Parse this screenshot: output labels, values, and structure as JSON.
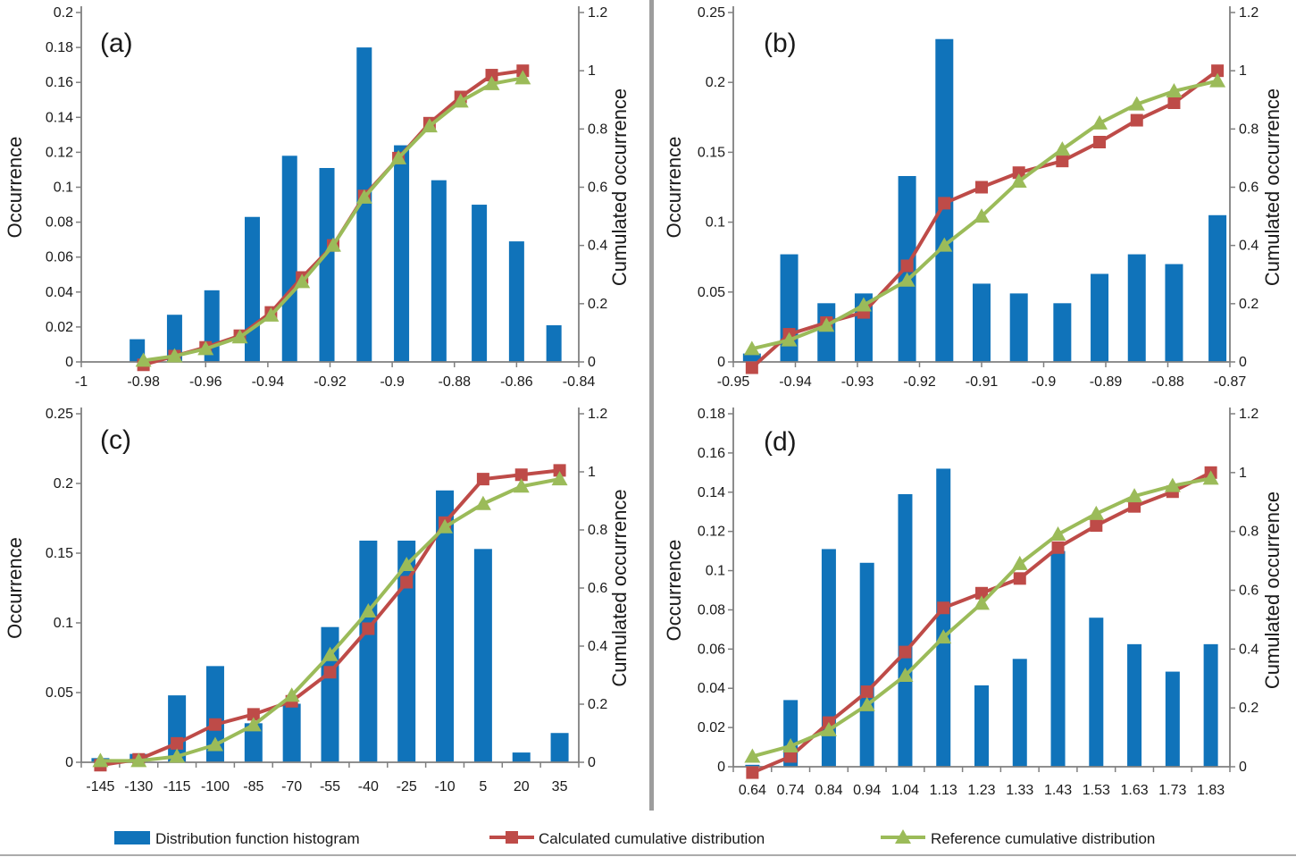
{
  "figure": {
    "background": "#ffffff",
    "axis_color": "#7f7f7f",
    "text_color": "#1a1a1a",
    "separator_color": "#9d9d9d"
  },
  "colors": {
    "bar": "#1073ba",
    "calculated": "#be4b48",
    "reference": "#9bbb59"
  },
  "legend": {
    "items": [
      {
        "key": "bar",
        "swatch": "blue-bar-swatch",
        "label": "Distribution function histogram"
      },
      {
        "key": "calculated",
        "swatch": "red-square-swatch",
        "label": "Calculated cumulative distribution"
      },
      {
        "key": "reference",
        "swatch": "green-triangle-swatch",
        "label": "Reference cumulative distribution"
      }
    ]
  },
  "chart_data": [
    {
      "id": "a",
      "label": "(a)",
      "type": "bar",
      "subtype": "histogram with two cumulative-distribution lines",
      "x_axis": {
        "min": -1,
        "max": -0.84,
        "tick_positions": [
          -1,
          -0.98,
          -0.96,
          -0.94,
          -0.92,
          -0.9,
          -0.88,
          -0.86,
          -0.84
        ],
        "tick_labels": [
          "-1",
          "-0.98",
          "-0.96",
          "-0.94",
          "-0.92",
          "-0.9",
          "-0.88",
          "-0.86",
          "-0.84"
        ],
        "tick_marks": [
          -1,
          -0.98,
          -0.96,
          -0.94,
          -0.92,
          -0.9,
          -0.88,
          -0.86,
          -0.84
        ]
      },
      "left_axis": {
        "title": "Occurrence",
        "min": 0,
        "max": 0.2,
        "tick_values": [
          0,
          0.02,
          0.04,
          0.06,
          0.08,
          0.1,
          0.12,
          0.14,
          0.16,
          0.18,
          0.2
        ],
        "tick_labels": [
          "0",
          "0.02",
          "0.04",
          "0.06",
          "0.08",
          "0.1",
          "0.12",
          "0.14",
          "0.16",
          "0.18",
          "0.2"
        ]
      },
      "right_axis": {
        "title": "Cumulated occurrence",
        "min": 0,
        "max": 1.2,
        "tick_values": [
          0,
          0.2,
          0.4,
          0.6,
          0.8,
          1,
          1.2
        ],
        "tick_labels": [
          "0",
          "0.2",
          "0.4",
          "0.6",
          "0.8",
          "1",
          "1.2"
        ]
      },
      "bars": {
        "x": [
          -0.982,
          -0.97,
          -0.958,
          -0.945,
          -0.933,
          -0.921,
          -0.909,
          -0.897,
          -0.885,
          -0.872,
          -0.86,
          -0.848
        ],
        "heights": [
          0.013,
          0.027,
          0.041,
          0.083,
          0.118,
          0.111,
          0.18,
          0.124,
          0.104,
          0.09,
          0.069,
          0.021
        ]
      },
      "series": [
        {
          "name": "Calculated cumulative distribution",
          "marker": "square",
          "color_key": "calculated",
          "x": [
            -0.98,
            -0.97,
            -0.96,
            -0.949,
            -0.939,
            -0.929,
            -0.919,
            -0.909,
            -0.898,
            -0.888,
            -0.878,
            -0.868,
            -0.858
          ],
          "values": [
            -0.01,
            0.02,
            0.05,
            0.09,
            0.17,
            0.29,
            0.4,
            0.57,
            0.7,
            0.82,
            0.91,
            0.985,
            1.0
          ]
        },
        {
          "name": "Reference cumulative distribution",
          "marker": "triangle",
          "color_key": "reference",
          "x": [
            -0.98,
            -0.97,
            -0.96,
            -0.949,
            -0.939,
            -0.929,
            -0.919,
            -0.909,
            -0.898,
            -0.888,
            -0.878,
            -0.868,
            -0.858
          ],
          "values": [
            0.005,
            0.02,
            0.045,
            0.085,
            0.16,
            0.275,
            0.4,
            0.565,
            0.7,
            0.81,
            0.895,
            0.955,
            0.975
          ]
        }
      ]
    },
    {
      "id": "b",
      "label": "(b)",
      "type": "bar",
      "subtype": "histogram with two cumulative-distribution lines",
      "x_axis": {
        "min": -0.95,
        "max": -0.87,
        "tick_positions": [
          -0.95,
          -0.94,
          -0.93,
          -0.92,
          -0.91,
          -0.9,
          -0.89,
          -0.88,
          -0.87
        ],
        "tick_labels": [
          "-0.95",
          "-0.94",
          "-0.93",
          "-0.92",
          "-0.91",
          "-0.9",
          "-0.89",
          "-0.88",
          "-0.87"
        ],
        "tick_marks": [
          -0.95,
          -0.94,
          -0.93,
          -0.92,
          -0.91,
          -0.9,
          -0.89,
          -0.88,
          -0.87
        ]
      },
      "left_axis": {
        "title": "Occurrence",
        "min": 0,
        "max": 0.25,
        "tick_values": [
          0,
          0.05,
          0.1,
          0.15,
          0.2,
          0.25
        ],
        "tick_labels": [
          "0",
          "0.05",
          "0.1",
          "0.15",
          "0.2",
          "0.25"
        ]
      },
      "right_axis": {
        "title": "Cumulated occurrence",
        "min": 0,
        "max": 1.2,
        "tick_values": [
          0,
          0.2,
          0.4,
          0.6,
          0.8,
          1,
          1.2
        ],
        "tick_labels": [
          "0",
          "0.2",
          "0.4",
          "0.6",
          "0.8",
          "1",
          "1.2"
        ]
      },
      "bars": {
        "x": [
          -0.947,
          -0.941,
          -0.935,
          -0.929,
          -0.922,
          -0.916,
          -0.91,
          -0.904,
          -0.897,
          -0.891,
          -0.885,
          -0.879,
          -0.872
        ],
        "heights": [
          0.006,
          0.077,
          0.042,
          0.049,
          0.133,
          0.231,
          0.056,
          0.049,
          0.042,
          0.063,
          0.077,
          0.07,
          0.105
        ]
      },
      "series": [
        {
          "name": "Calculated cumulative distribution",
          "marker": "square",
          "color_key": "calculated",
          "x": [
            -0.947,
            -0.941,
            -0.935,
            -0.929,
            -0.922,
            -0.916,
            -0.91,
            -0.904,
            -0.897,
            -0.891,
            -0.885,
            -0.879,
            -0.872
          ],
          "values": [
            -0.02,
            0.095,
            0.135,
            0.17,
            0.33,
            0.545,
            0.6,
            0.65,
            0.69,
            0.755,
            0.83,
            0.89,
            1.0
          ]
        },
        {
          "name": "Reference cumulative distribution",
          "marker": "triangle",
          "color_key": "reference",
          "x": [
            -0.947,
            -0.941,
            -0.935,
            -0.929,
            -0.922,
            -0.916,
            -0.91,
            -0.904,
            -0.897,
            -0.891,
            -0.885,
            -0.879,
            -0.872
          ],
          "values": [
            0.045,
            0.075,
            0.125,
            0.195,
            0.28,
            0.4,
            0.5,
            0.62,
            0.73,
            0.82,
            0.885,
            0.93,
            0.965
          ]
        }
      ]
    },
    {
      "id": "c",
      "label": "(c)",
      "type": "bar",
      "subtype": "histogram with two cumulative-distribution lines",
      "x_axis": {
        "min": -0.5,
        "max": 12.5,
        "tick_positions": [
          0,
          1,
          2,
          3,
          4,
          5,
          6,
          7,
          8,
          9,
          10,
          11,
          12
        ],
        "tick_labels": [
          "-145",
          "-130",
          "-115",
          "-100",
          "-85",
          "-70",
          "-55",
          "-40",
          "-25",
          "-10",
          "5",
          "20",
          "35"
        ],
        "tick_marks": [
          -0.5,
          0.5,
          1.5,
          2.5,
          3.5,
          4.5,
          5.5,
          6.5,
          7.5,
          8.5,
          9.5,
          10.5,
          11.5,
          12.5
        ]
      },
      "left_axis": {
        "title": "Occurrence",
        "min": 0,
        "max": 0.25,
        "tick_values": [
          0,
          0.05,
          0.1,
          0.15,
          0.2,
          0.25
        ],
        "tick_labels": [
          "0",
          "0.05",
          "0.1",
          "0.15",
          "0.2",
          "0.25"
        ]
      },
      "right_axis": {
        "title": "Cumulated occurrence",
        "min": 0,
        "max": 1.2,
        "tick_values": [
          0,
          0.2,
          0.4,
          0.6,
          0.8,
          1,
          1.2
        ],
        "tick_labels": [
          "0",
          "0.2",
          "0.4",
          "0.6",
          "0.8",
          "1",
          "1.2"
        ]
      },
      "bars": {
        "x": [
          0,
          1,
          2,
          3,
          4,
          5,
          6,
          7,
          8,
          9,
          10,
          11,
          12
        ],
        "heights": [
          0.003,
          0.006,
          0.048,
          0.069,
          0.028,
          0.042,
          0.097,
          0.159,
          0.159,
          0.195,
          0.153,
          0.007,
          0.021
        ]
      },
      "series": [
        {
          "name": "Calculated cumulative distribution",
          "marker": "square",
          "color_key": "calculated",
          "x": [
            0,
            1,
            2,
            3,
            4,
            5,
            6,
            7,
            8,
            9,
            10,
            11,
            12
          ],
          "values": [
            -0.01,
            0.01,
            0.065,
            0.13,
            0.165,
            0.21,
            0.31,
            0.46,
            0.62,
            0.825,
            0.975,
            0.99,
            1.005
          ]
        },
        {
          "name": "Reference cumulative distribution",
          "marker": "triangle",
          "color_key": "reference",
          "x": [
            0,
            1,
            2,
            3,
            4,
            5,
            6,
            7,
            8,
            9,
            10,
            11,
            12
          ],
          "values": [
            0.005,
            0.005,
            0.02,
            0.06,
            0.128,
            0.23,
            0.37,
            0.52,
            0.68,
            0.81,
            0.89,
            0.95,
            0.975
          ]
        }
      ]
    },
    {
      "id": "d",
      "label": "(d)",
      "type": "bar",
      "subtype": "histogram with two cumulative-distribution lines",
      "x_axis": {
        "min": -0.5,
        "max": 12.5,
        "tick_positions": [
          0,
          1,
          2,
          3,
          4,
          5,
          6,
          7,
          8,
          9,
          10,
          11,
          12
        ],
        "tick_labels": [
          "0.64",
          "0.74",
          "0.84",
          "0.94",
          "1.04",
          "1.13",
          "1.23",
          "1.33",
          "1.43",
          "1.53",
          "1.63",
          "1.73",
          "1.83"
        ],
        "tick_marks": [
          -0.5,
          0.5,
          1.5,
          2.5,
          3.5,
          4.5,
          5.5,
          6.5,
          7.5,
          8.5,
          9.5,
          10.5,
          11.5,
          12.5
        ]
      },
      "left_axis": {
        "title": "Occurrence",
        "min": 0,
        "max": 0.18,
        "tick_values": [
          0,
          0.02,
          0.04,
          0.06,
          0.08,
          0.1,
          0.12,
          0.14,
          0.16,
          0.18
        ],
        "tick_labels": [
          "0",
          "0.02",
          "0.04",
          "0.06",
          "0.08",
          "0.1",
          "0.12",
          "0.14",
          "0.16",
          "0.18"
        ]
      },
      "right_axis": {
        "title": "Cumulated occurrence",
        "min": 0,
        "max": 1.2,
        "tick_values": [
          0,
          0.2,
          0.4,
          0.6,
          0.8,
          1,
          1.2
        ],
        "tick_labels": [
          "0",
          "0.2",
          "0.4",
          "0.6",
          "0.8",
          "1",
          "1.2"
        ]
      },
      "bars": {
        "x": [
          0,
          1,
          2,
          3,
          4,
          5,
          6,
          7,
          8,
          9,
          10,
          11,
          12
        ],
        "heights": [
          0.001,
          0.034,
          0.111,
          0.104,
          0.139,
          0.152,
          0.0415,
          0.055,
          0.11,
          0.076,
          0.0625,
          0.0485,
          0.0625
        ]
      },
      "series": [
        {
          "name": "Calculated cumulative distribution",
          "marker": "square",
          "color_key": "calculated",
          "x": [
            0,
            1,
            2,
            3,
            4,
            5,
            6,
            7,
            8,
            9,
            10,
            11,
            12
          ],
          "values": [
            -0.02,
            0.035,
            0.15,
            0.255,
            0.39,
            0.54,
            0.59,
            0.64,
            0.745,
            0.82,
            0.885,
            0.935,
            1.0
          ]
        },
        {
          "name": "Reference cumulative distribution",
          "marker": "triangle",
          "color_key": "reference",
          "x": [
            0,
            1,
            2,
            3,
            4,
            5,
            6,
            7,
            8,
            9,
            10,
            11,
            12
          ],
          "values": [
            0.035,
            0.07,
            0.125,
            0.21,
            0.31,
            0.44,
            0.555,
            0.69,
            0.79,
            0.86,
            0.92,
            0.955,
            0.98
          ]
        }
      ]
    }
  ]
}
